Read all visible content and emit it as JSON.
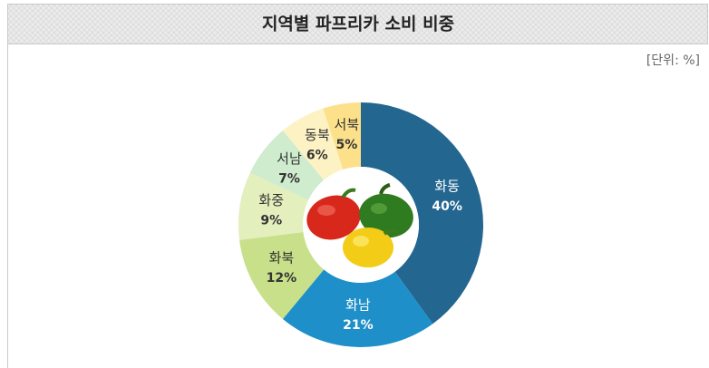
{
  "chart_data": {
    "type": "donut",
    "title": "지역별 파프리카 소비 비중",
    "unit_label": "[단위: %]",
    "categories": [
      "화동",
      "화남",
      "화북",
      "화중",
      "서남",
      "동북",
      "서북"
    ],
    "values": [
      40,
      21,
      12,
      9,
      7,
      6,
      5
    ],
    "value_labels": [
      "40%",
      "21%",
      "12%",
      "9%",
      "7%",
      "6%",
      "5%"
    ],
    "colors": [
      "#236690",
      "#1e8fc9",
      "#c8e08a",
      "#e3efbd",
      "#cfeccf",
      "#fdf2c4",
      "#fde08a"
    ],
    "label_colors": [
      "#ffffff",
      "#ffffff",
      "#333333",
      "#333333",
      "#333333",
      "#333333",
      "#333333"
    ]
  }
}
